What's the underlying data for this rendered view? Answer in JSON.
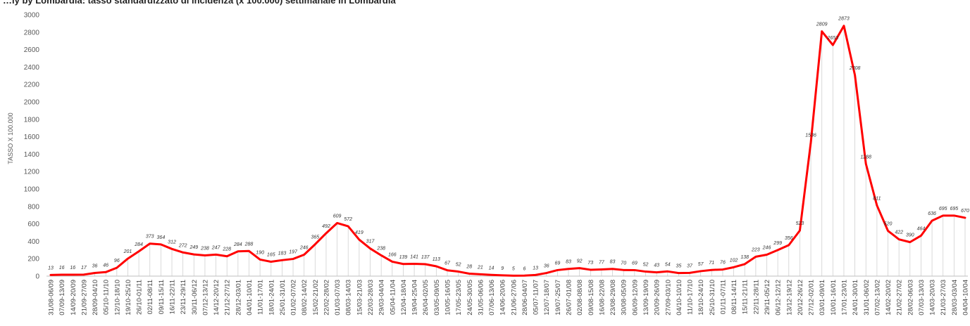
{
  "chart_data": {
    "type": "line",
    "title": "…ly by Lombardia: tasso standardizzato di incidenza (x 100.000) settimanale in Lombardia",
    "ylabel": "TASSO X 100.000",
    "xlabel": "",
    "ylim": [
      0,
      3000
    ],
    "yticks": [
      0,
      200,
      400,
      600,
      800,
      1000,
      1200,
      1400,
      1600,
      1800,
      2000,
      2200,
      2400,
      2600,
      2800,
      3000
    ],
    "grid": "vertical drop lines per point",
    "legend": "none",
    "line_color": "#ff0000",
    "categories": [
      "31/08-06/09",
      "07/09-13/09",
      "14/09-20/09",
      "21/09-27/09",
      "28/09-04/10",
      "05/10-11/10",
      "12/10-18/10",
      "19/10-25/10",
      "26/10-01/11",
      "02/11-08/11",
      "09/11-15/11",
      "16/11-22/11",
      "23/11-29/11",
      "30/11-06/12",
      "07/12-13/12",
      "14/12-20/12",
      "21/12-27/12",
      "28/12-03/01",
      "04/01-10/01",
      "11/01-17/01",
      "18/01-24/01",
      "25/01-31/01",
      "01/02-07/02",
      "08/02-14/02",
      "15/02-21/02",
      "22/02-28/02",
      "01/03-07/03",
      "08/03-14/03",
      "15/03-21/03",
      "22/03-28/03",
      "29/03-04/04",
      "05/04-11/04",
      "12/04-18/04",
      "19/04-25/04",
      "26/04-02/05",
      "03/05-09/05",
      "10/05-16/05",
      "17/05-23/05",
      "24/05-30/05",
      "31/05-06/06",
      "07/06-13/06",
      "14/06-20/06",
      "21/06-27/06",
      "28/06-04/07",
      "05/07-11/07",
      "12/07-18/07",
      "19/07-25/07",
      "26/07-01/08",
      "02/08-08/08",
      "09/08-15/08",
      "16/08-22/08",
      "23/08-29/08",
      "30/08-05/09",
      "06/09-12/09",
      "13/09-19/09",
      "20/09-26/09",
      "27/09-03/10",
      "04/10-10/10",
      "11/10-17/10",
      "18/10-24/10",
      "25/10-31/10",
      "01/11-07/11",
      "08/11-14/11",
      "15/11-21/11",
      "22/11-28/11",
      "29/11-05/12",
      "06/12-12/12",
      "13/12-19/12",
      "20/12-26/12",
      "27/12-02/01",
      "03/01-09/01",
      "10/01-16/01",
      "17/01-23/01",
      "24/01-30/01",
      "31/01-06/02",
      "07/02-13/02",
      "14/02-20/02",
      "21/02-27/02",
      "28/02-06/03",
      "07/03-13/03",
      "14/03-20/03",
      "21/03-27/03",
      "28/03-03/04",
      "04/04-10/04"
    ],
    "values": [
      13,
      16,
      16,
      17,
      36,
      46,
      96,
      201,
      284,
      373,
      364,
      312,
      272,
      249,
      238,
      247,
      228,
      284,
      288,
      190,
      165,
      183,
      197,
      246,
      365,
      492,
      609,
      572,
      419,
      317,
      238,
      166,
      139,
      141,
      137,
      113,
      67,
      52,
      28,
      21,
      14,
      9,
      5,
      6,
      13,
      36,
      69,
      83,
      92,
      73,
      77,
      83,
      70,
      69,
      52,
      43,
      54,
      35,
      37,
      57,
      71,
      76,
      102,
      138,
      223,
      246,
      299,
      356,
      523,
      1536,
      2809,
      2653,
      2873,
      2308,
      1288,
      811,
      520,
      422,
      390,
      464,
      636,
      695,
      695,
      670
    ],
    "data_labels": [
      "13",
      "16",
      "16",
      "17",
      "36",
      "46",
      "96",
      "201",
      "284",
      "373",
      "364",
      "312",
      "272",
      "249",
      "238",
      "247",
      "228",
      "284",
      "288",
      "190",
      "165",
      "183",
      "197",
      "246",
      "365",
      "492",
      "609",
      "572",
      "419",
      "317",
      "238",
      "166",
      "139",
      "141",
      "137",
      "113",
      "67",
      "52",
      "28",
      "21",
      "14",
      "9",
      "5",
      "6",
      "13",
      "36",
      "69",
      "83",
      "92",
      "73",
      "77",
      "83",
      "70",
      "69",
      "52",
      "43",
      "54",
      "35",
      "37",
      "57",
      "71",
      "76",
      "102",
      "138",
      "223",
      "246",
      "299",
      "356",
      "523",
      "1536",
      "2809",
      "2653",
      "2873",
      "2308",
      "1288",
      "811",
      "520",
      "422",
      "390",
      "464",
      "636",
      "695",
      "695",
      "670"
    ]
  }
}
